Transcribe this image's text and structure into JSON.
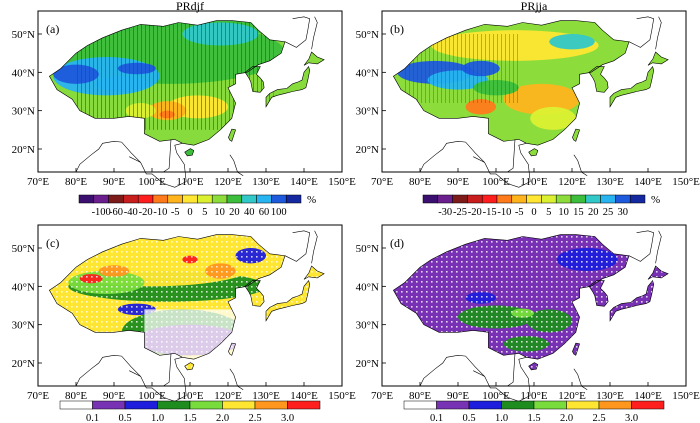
{
  "figure": {
    "lat_ticks": [
      "50°N",
      "40°N",
      "30°N",
      "20°N"
    ],
    "lon_ticks": [
      "70°E",
      "80°E",
      "90°E",
      "100°E",
      "110°E",
      "120°E",
      "130°E",
      "140°E",
      "150°E"
    ]
  },
  "panels": [
    {
      "id": "a",
      "label": "(a)",
      "title": "PRdjf",
      "colorbar": {
        "unit": "%",
        "labels": [
          "-100",
          "-60",
          "-40",
          "-20",
          "-10",
          "-5",
          "0",
          "5",
          "10",
          "20",
          "40",
          "60",
          "100"
        ],
        "colors": [
          "#3b0f70",
          "#6b1f8f",
          "#7d1a1a",
          "#c81e1e",
          "#ff1e1e",
          "#ff7a1a",
          "#ffb41e",
          "#ffe632",
          "#dcf032",
          "#8cdc3c",
          "#3cbe3c",
          "#32c8c8",
          "#28b4f0",
          "#1e5adc",
          "#1428a0"
        ]
      }
    },
    {
      "id": "b",
      "label": "(b)",
      "title": "PRjja",
      "colorbar": {
        "unit": "%",
        "labels": [
          "-30",
          "-25",
          "-20",
          "-15",
          "-10",
          "-5",
          "0",
          "5",
          "10",
          "15",
          "20",
          "25",
          "30"
        ],
        "colors": [
          "#3b0f70",
          "#6b1f8f",
          "#7d1a1a",
          "#c81e1e",
          "#ff1e1e",
          "#ff7a1a",
          "#ffb41e",
          "#ffe632",
          "#dcf032",
          "#8cdc3c",
          "#3cbe3c",
          "#32c8c8",
          "#28b4f0",
          "#1e5adc",
          "#1428a0"
        ]
      }
    },
    {
      "id": "c",
      "label": "(c)",
      "title": "",
      "colorbar": {
        "unit": "",
        "labels": [
          "0.1",
          "0.5",
          "1.0",
          "1.5",
          "2.0",
          "2.5",
          "3.0"
        ],
        "colors": [
          "#ffffff",
          "#7832b4",
          "#1e1edc",
          "#1e8c1e",
          "#78dc3c",
          "#ffe632",
          "#ff961e",
          "#ff1e1e"
        ]
      }
    },
    {
      "id": "d",
      "label": "(d)",
      "title": "",
      "colorbar": {
        "unit": "",
        "labels": [
          "0.1",
          "0.5",
          "1.0",
          "1.5",
          "2.0",
          "2.5",
          "3.0"
        ],
        "colors": [
          "#ffffff",
          "#7832b4",
          "#1e1edc",
          "#1e8c1e",
          "#78dc3c",
          "#ffe632",
          "#ff961e",
          "#ff1e1e"
        ]
      }
    }
  ]
}
